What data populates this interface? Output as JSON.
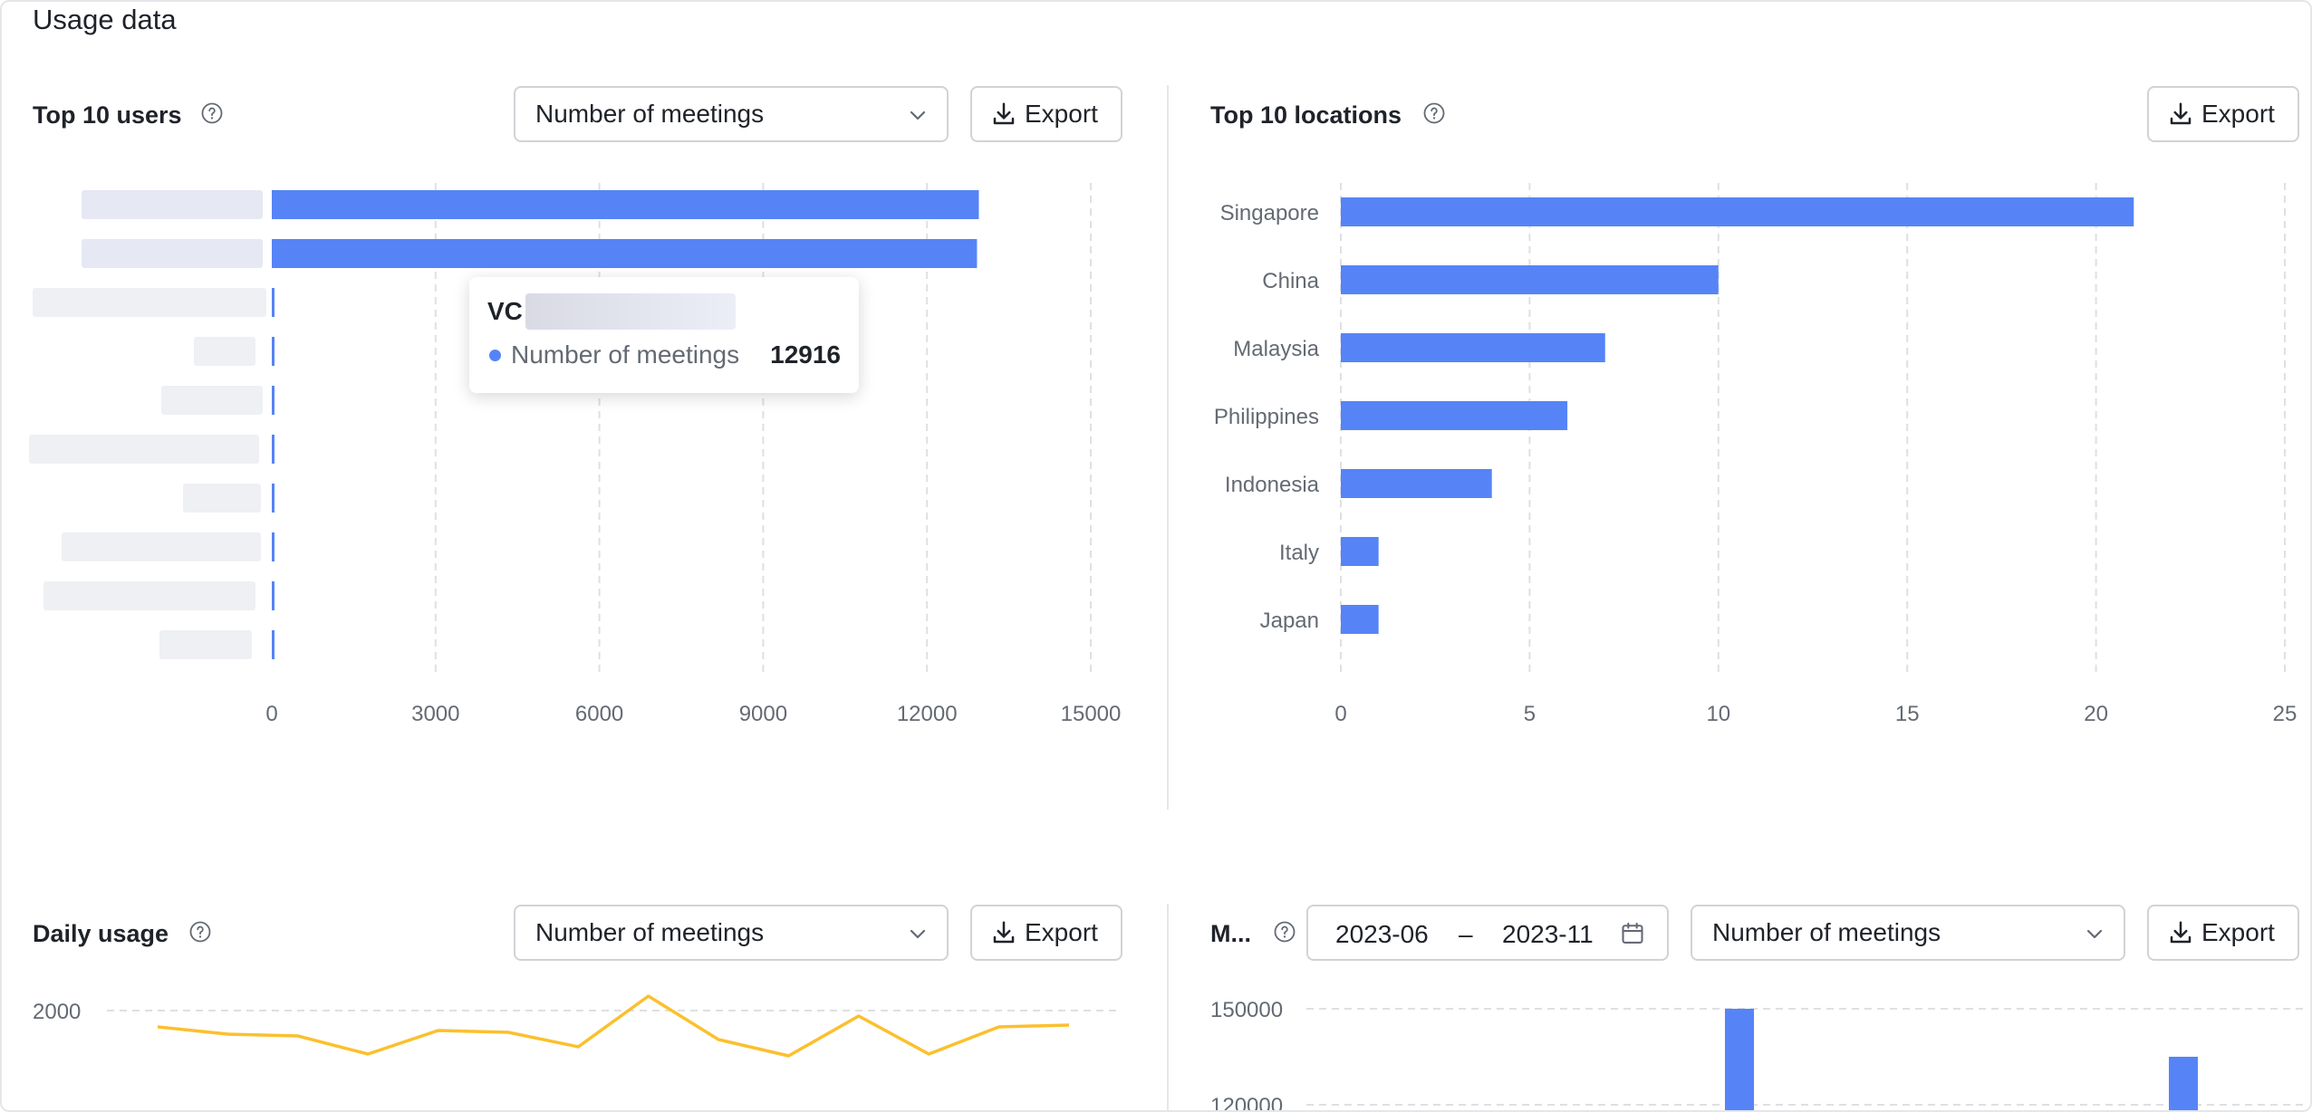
{
  "page": {
    "title": "Usage data"
  },
  "colors": {
    "bar": "#5684f7",
    "line": "#fbc02d",
    "grid": "#dee0e3",
    "axis_text": "#646a73"
  },
  "panels": {
    "top_users": {
      "title": "Top 10 users",
      "metric_select": "Number of meetings",
      "export_label": "Export",
      "tooltip": {
        "name_prefix": "VC",
        "series": "Number of meetings",
        "value": "12916"
      }
    },
    "top_locations": {
      "title": "Top 10 locations",
      "export_label": "Export"
    },
    "daily_usage": {
      "title": "Daily usage",
      "metric_select": "Number of meetings",
      "export_label": "Export"
    },
    "monthly": {
      "title": "M...",
      "date_start": "2023-06",
      "date_sep": "–",
      "date_end": "2023-11",
      "metric_select": "Number of meetings",
      "export_label": "Export"
    }
  },
  "chart_data": [
    {
      "id": "top_users",
      "type": "bar",
      "orientation": "horizontal",
      "categories_hidden": true,
      "values": [
        12950,
        12916,
        30,
        25,
        20,
        20,
        15,
        15,
        10,
        10
      ],
      "xlim": [
        0,
        15000
      ],
      "xticks": [
        0,
        3000,
        6000,
        9000,
        12000,
        15000
      ],
      "grid": true
    },
    {
      "id": "top_locations",
      "type": "bar",
      "orientation": "horizontal",
      "categories": [
        "Singapore",
        "China",
        "Malaysia",
        "Philippines",
        "Indonesia",
        "Italy",
        "Japan"
      ],
      "values": [
        21,
        10,
        7,
        6,
        4,
        1,
        1
      ],
      "xlim": [
        0,
        25
      ],
      "xticks": [
        0,
        5,
        10,
        15,
        20,
        25
      ],
      "grid": true
    },
    {
      "id": "daily_usage",
      "type": "line",
      "yticks": [
        2000
      ],
      "values": [
        1955,
        1935,
        1930,
        1880,
        1945,
        1940,
        1900,
        2040,
        1920,
        1875,
        1985,
        1880,
        1955,
        1960
      ],
      "grid": true
    },
    {
      "id": "monthly",
      "type": "bar",
      "yticks": [
        150000,
        120000
      ],
      "values": [
        150000,
        null,
        null,
        null,
        null,
        null,
        135000
      ],
      "grid": true
    }
  ]
}
